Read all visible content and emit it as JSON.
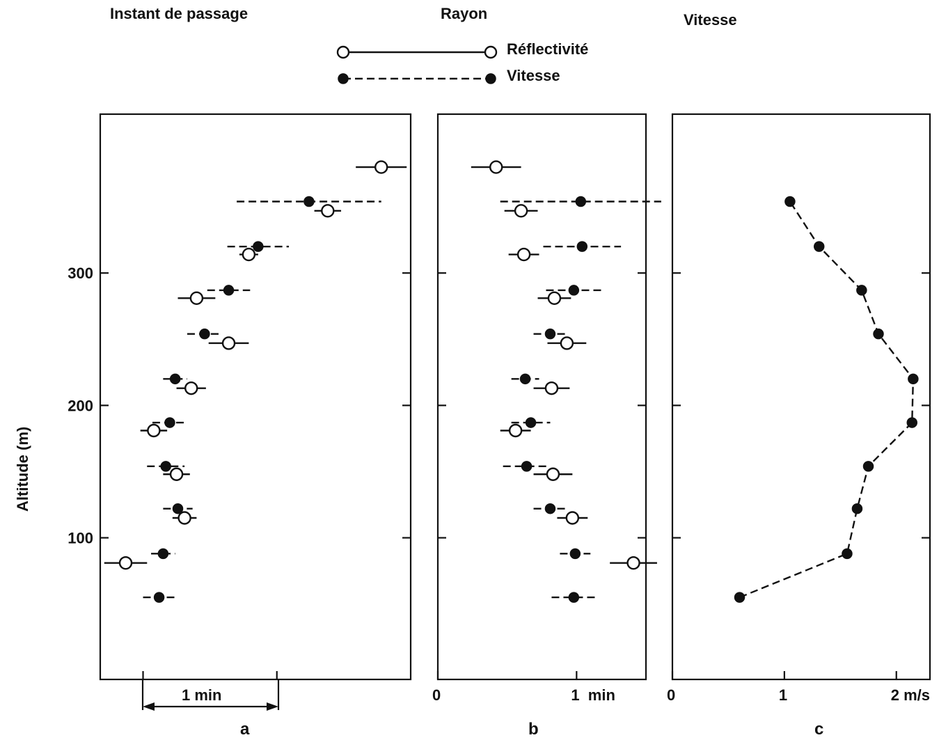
{
  "headers": {
    "a": "Instant de passage",
    "b": "Rayon",
    "c": "Vitesse"
  },
  "legend": {
    "reflectivite": "Réflectivité",
    "vitesse": "Vitesse"
  },
  "ylabel": "Altitude (m)",
  "panel_labels": {
    "a": "a",
    "b": "b",
    "c": "c"
  },
  "scale_bar_label": "1 min",
  "chart_data": [
    {
      "panel": "a",
      "type": "scatter",
      "title": "Instant de passage",
      "ylabel": "Altitude (m)",
      "xlabel": "",
      "x_unit": "min",
      "scale_bar": "1 min",
      "x_ticks": [
        0,
        1
      ],
      "x_tick_labels": [
        "",
        ""
      ],
      "y_ticks": [
        100,
        200,
        300
      ],
      "y_tick_labels": [
        "100",
        "200",
        "300"
      ],
      "xlim": [
        -0.32,
        2.0
      ],
      "ylim": [
        -7,
        420
      ],
      "series": [
        {
          "name": "Réflectivité",
          "marker": "open",
          "line": "solid",
          "points": [
            {
              "y": 81,
              "x": -0.13,
              "err": 0.16
            },
            {
              "y": 115,
              "x": 0.31,
              "err": 0.09
            },
            {
              "y": 148,
              "x": 0.25,
              "err": 0.1
            },
            {
              "y": 181,
              "x": 0.08,
              "err": 0.1
            },
            {
              "y": 213,
              "x": 0.36,
              "err": 0.11
            },
            {
              "y": 247,
              "x": 0.64,
              "err": 0.15
            },
            {
              "y": 281,
              "x": 0.4,
              "err": 0.14
            },
            {
              "y": 314,
              "x": 0.79,
              "err": 0.07
            },
            {
              "y": 347,
              "x": 1.38,
              "err": 0.1
            },
            {
              "y": 380,
              "x": 1.78,
              "err": 0.19
            }
          ]
        },
        {
          "name": "Vitesse",
          "marker": "filled",
          "line": "dashed",
          "points": [
            {
              "y": 55,
              "x": 0.12,
              "err": 0.12
            },
            {
              "y": 88,
              "x": 0.15,
              "err": 0.09
            },
            {
              "y": 122,
              "x": 0.26,
              "err": 0.11
            },
            {
              "y": 154,
              "x": 0.17,
              "err": 0.14
            },
            {
              "y": 187,
              "x": 0.2,
              "err": 0.13
            },
            {
              "y": 220,
              "x": 0.24,
              "err": 0.09
            },
            {
              "y": 254,
              "x": 0.46,
              "err": 0.13
            },
            {
              "y": 287,
              "x": 0.64,
              "err": 0.16
            },
            {
              "y": 320,
              "x": 0.86,
              "err": 0.23
            },
            {
              "y": 354,
              "x": 1.24,
              "err": 0.54
            }
          ]
        }
      ]
    },
    {
      "panel": "b",
      "type": "scatter",
      "title": "Rayon",
      "xlabel": "",
      "x_unit": "min",
      "x_ticks": [
        0,
        1
      ],
      "x_tick_labels": [
        "0",
        "1  min"
      ],
      "y_ticks": [
        100,
        200,
        300
      ],
      "xlim": [
        0,
        1.5
      ],
      "ylim": [
        -7,
        420
      ],
      "series": [
        {
          "name": "Réflectivité",
          "marker": "open",
          "line": "solid",
          "points": [
            {
              "y": 81,
              "x": 1.41,
              "err": 0.17
            },
            {
              "y": 115,
              "x": 0.97,
              "err": 0.11
            },
            {
              "y": 148,
              "x": 0.83,
              "err": 0.14
            },
            {
              "y": 181,
              "x": 0.56,
              "err": 0.11
            },
            {
              "y": 213,
              "x": 0.82,
              "err": 0.13
            },
            {
              "y": 247,
              "x": 0.93,
              "err": 0.14
            },
            {
              "y": 281,
              "x": 0.84,
              "err": 0.12
            },
            {
              "y": 314,
              "x": 0.62,
              "err": 0.11
            },
            {
              "y": 347,
              "x": 0.6,
              "err": 0.12
            },
            {
              "y": 380,
              "x": 0.42,
              "err": 0.18
            }
          ]
        },
        {
          "name": "Vitesse",
          "marker": "filled",
          "line": "dashed",
          "points": [
            {
              "y": 55,
              "x": 0.98,
              "err": 0.16
            },
            {
              "y": 88,
              "x": 0.99,
              "err": 0.11
            },
            {
              "y": 122,
              "x": 0.81,
              "err": 0.12
            },
            {
              "y": 154,
              "x": 0.64,
              "err": 0.17
            },
            {
              "y": 187,
              "x": 0.67,
              "err": 0.14
            },
            {
              "y": 220,
              "x": 0.63,
              "err": 0.1
            },
            {
              "y": 254,
              "x": 0.81,
              "err": 0.12
            },
            {
              "y": 287,
              "x": 0.98,
              "err": 0.2
            },
            {
              "y": 320,
              "x": 1.04,
              "err": 0.28
            },
            {
              "y": 354,
              "x": 1.03,
              "err": 0.58
            }
          ]
        }
      ]
    },
    {
      "panel": "c",
      "type": "line",
      "title": "Vitesse",
      "xlabel": "",
      "x_unit": "m/s",
      "x_ticks": [
        0,
        1,
        2
      ],
      "x_tick_labels": [
        "0",
        "1",
        "2 m/s"
      ],
      "y_ticks": [
        100,
        200,
        300
      ],
      "xlim": [
        0,
        2.3
      ],
      "ylim": [
        -7,
        420
      ],
      "series": [
        {
          "name": "Vitesse",
          "marker": "filled",
          "line": "dashed",
          "points": [
            {
              "y": 55,
              "x": 0.6
            },
            {
              "y": 88,
              "x": 1.56
            },
            {
              "y": 122,
              "x": 1.65
            },
            {
              "y": 154,
              "x": 1.75
            },
            {
              "y": 187,
              "x": 2.14
            },
            {
              "y": 220,
              "x": 2.15
            },
            {
              "y": 254,
              "x": 1.84
            },
            {
              "y": 287,
              "x": 1.69
            },
            {
              "y": 320,
              "x": 1.31
            },
            {
              "y": 354,
              "x": 1.05
            }
          ]
        }
      ]
    }
  ]
}
